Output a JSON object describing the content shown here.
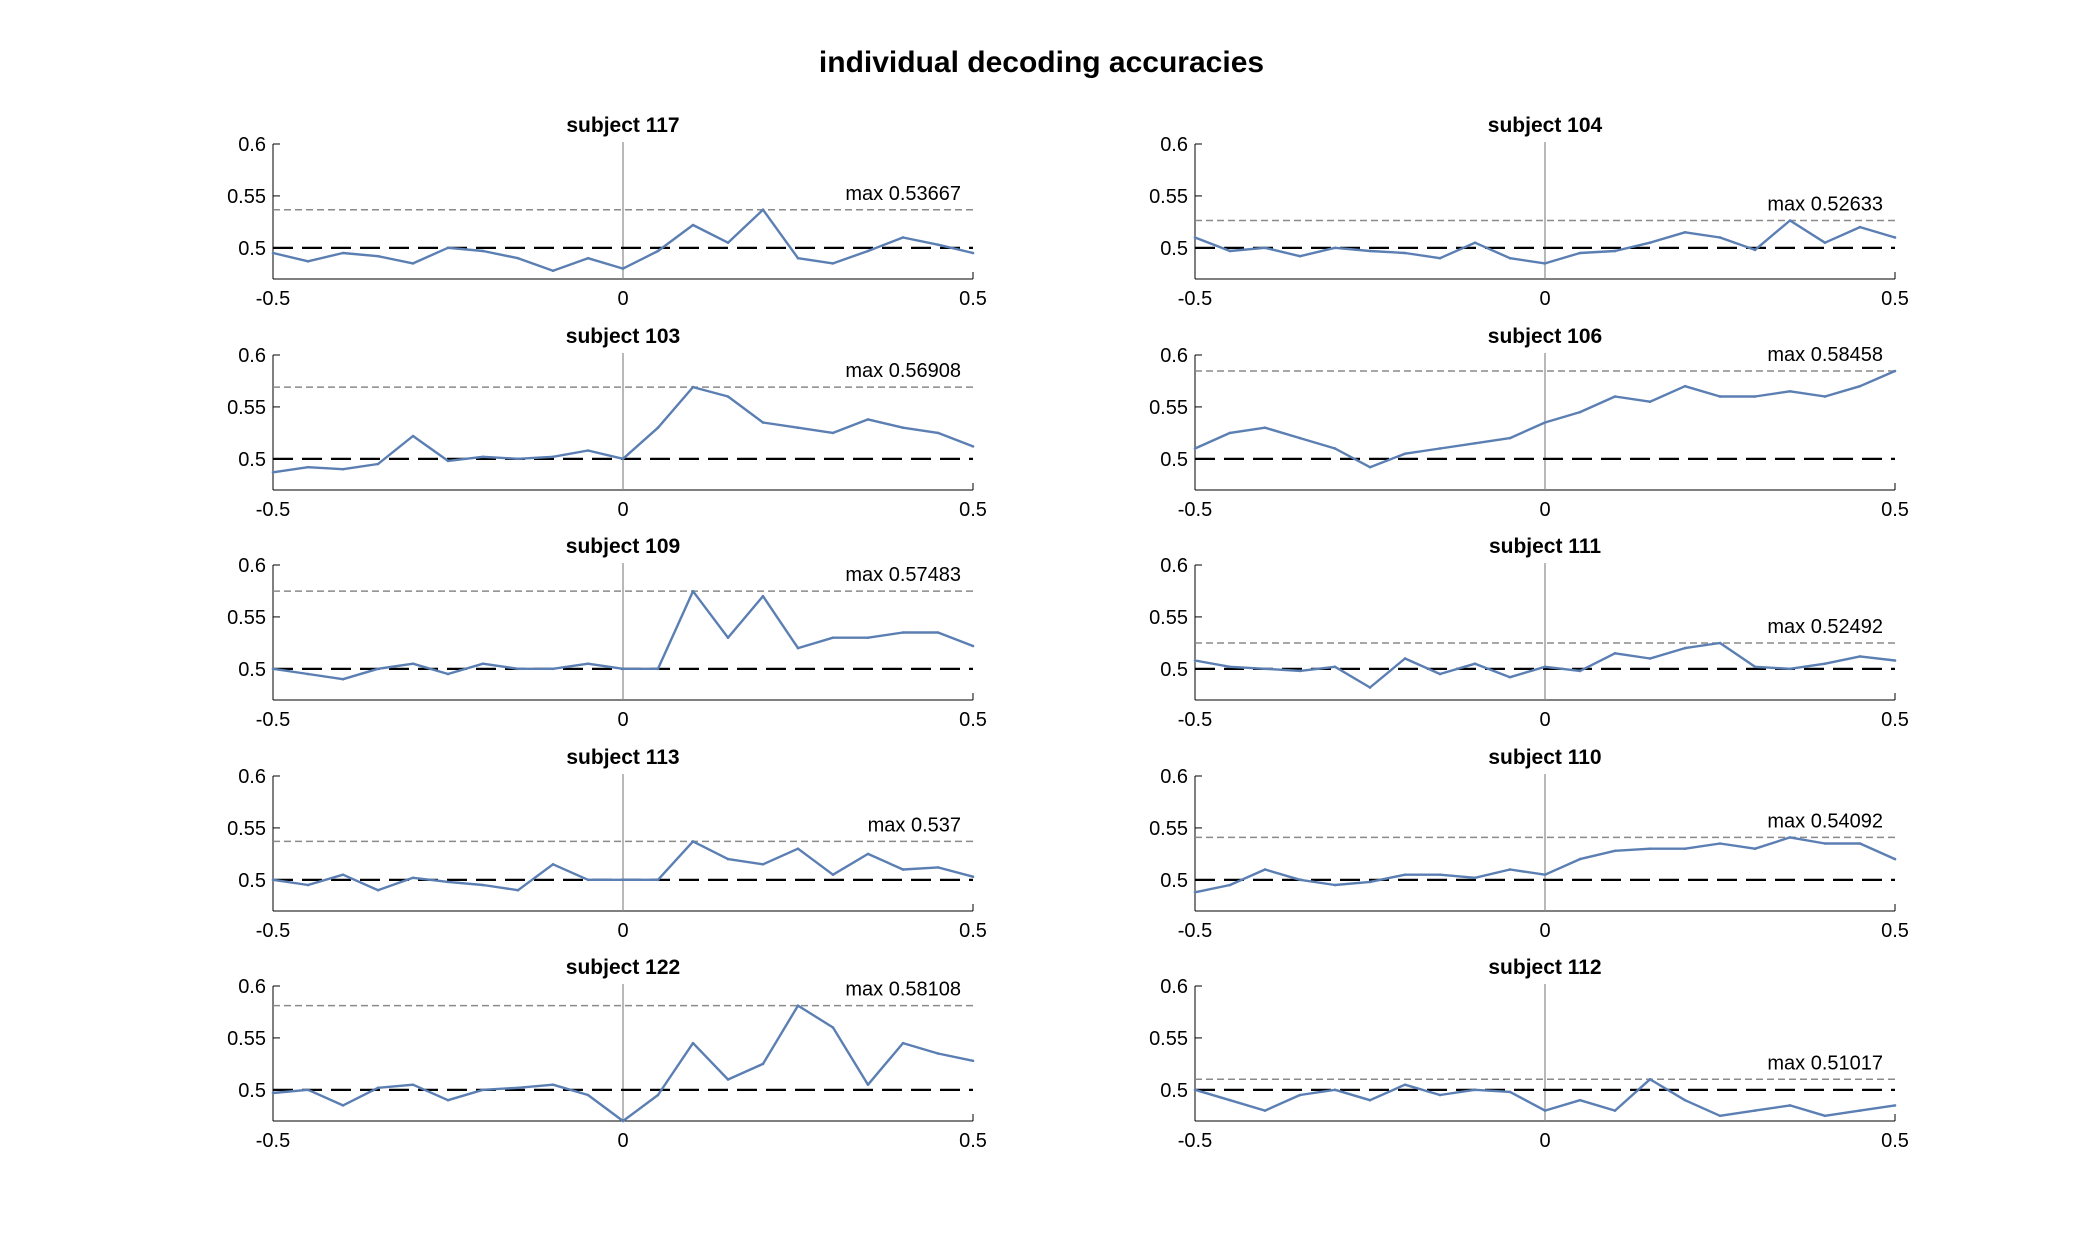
{
  "figure": {
    "title": "individual decoding accuracies"
  },
  "style": {
    "line_color": "#5b7fb3",
    "chance_color": "#000000",
    "max_line_color": "#8a8a8a",
    "axis_color": "#000000"
  },
  "chart_data": [
    {
      "type": "line",
      "title": "subject 117",
      "annotation": "max 0.53667",
      "max_value": 0.53667,
      "chance": 0.5,
      "xlim": [
        -0.5,
        0.5
      ],
      "ylim": [
        0.47,
        0.6
      ],
      "xticks": [
        -0.5,
        0,
        0.5
      ],
      "xtick_labels": [
        "-0.5",
        "0",
        "0.5"
      ],
      "yticks": [
        0.5,
        0.55,
        0.6
      ],
      "ytick_labels": [
        "0.5",
        "0.55",
        "0.6"
      ],
      "x": [
        -0.5,
        -0.45,
        -0.4,
        -0.35,
        -0.3,
        -0.25,
        -0.2,
        -0.15,
        -0.1,
        -0.05,
        0,
        0.05,
        0.1,
        0.15,
        0.2,
        0.25,
        0.3,
        0.35,
        0.4,
        0.45,
        0.5
      ],
      "values": [
        0.495,
        0.487,
        0.495,
        0.492,
        0.485,
        0.5,
        0.497,
        0.49,
        0.478,
        0.49,
        0.48,
        0.497,
        0.522,
        0.505,
        0.5367,
        0.49,
        0.485,
        0.497,
        0.51,
        0.503,
        0.495
      ]
    },
    {
      "type": "line",
      "title": "subject 104",
      "annotation": "max 0.52633",
      "max_value": 0.52633,
      "chance": 0.5,
      "xlim": [
        -0.5,
        0.5
      ],
      "ylim": [
        0.47,
        0.6
      ],
      "xticks": [
        -0.5,
        0,
        0.5
      ],
      "xtick_labels": [
        "-0.5",
        "0",
        "0.5"
      ],
      "yticks": [
        0.5,
        0.55,
        0.6
      ],
      "ytick_labels": [
        "0.5",
        "0.55",
        "0.6"
      ],
      "x": [
        -0.5,
        -0.45,
        -0.4,
        -0.35,
        -0.3,
        -0.25,
        -0.2,
        -0.15,
        -0.1,
        -0.05,
        0,
        0.05,
        0.1,
        0.15,
        0.2,
        0.25,
        0.3,
        0.35,
        0.4,
        0.45,
        0.5
      ],
      "values": [
        0.51,
        0.497,
        0.5,
        0.492,
        0.5,
        0.497,
        0.495,
        0.49,
        0.505,
        0.49,
        0.485,
        0.495,
        0.497,
        0.505,
        0.515,
        0.51,
        0.498,
        0.5263,
        0.505,
        0.52,
        0.51
      ]
    },
    {
      "type": "line",
      "title": "subject 103",
      "annotation": "max 0.56908",
      "max_value": 0.56908,
      "chance": 0.5,
      "xlim": [
        -0.5,
        0.5
      ],
      "ylim": [
        0.47,
        0.6
      ],
      "xticks": [
        -0.5,
        0,
        0.5
      ],
      "xtick_labels": [
        "-0.5",
        "0",
        "0.5"
      ],
      "yticks": [
        0.5,
        0.55,
        0.6
      ],
      "ytick_labels": [
        "0.5",
        "0.55",
        "0.6"
      ],
      "x": [
        -0.5,
        -0.45,
        -0.4,
        -0.35,
        -0.3,
        -0.25,
        -0.2,
        -0.15,
        -0.1,
        -0.05,
        0,
        0.05,
        0.1,
        0.15,
        0.2,
        0.25,
        0.3,
        0.35,
        0.4,
        0.45,
        0.5
      ],
      "values": [
        0.487,
        0.492,
        0.49,
        0.495,
        0.522,
        0.498,
        0.502,
        0.5,
        0.502,
        0.508,
        0.5,
        0.53,
        0.5691,
        0.56,
        0.535,
        0.53,
        0.525,
        0.538,
        0.53,
        0.525,
        0.512
      ]
    },
    {
      "type": "line",
      "title": "subject 106",
      "annotation": "max 0.58458",
      "max_value": 0.58458,
      "chance": 0.5,
      "xlim": [
        -0.5,
        0.5
      ],
      "ylim": [
        0.47,
        0.6
      ],
      "xticks": [
        -0.5,
        0,
        0.5
      ],
      "xtick_labels": [
        "-0.5",
        "0",
        "0.5"
      ],
      "yticks": [
        0.5,
        0.55,
        0.6
      ],
      "ytick_labels": [
        "0.5",
        "0.55",
        "0.6"
      ],
      "x": [
        -0.5,
        -0.45,
        -0.4,
        -0.35,
        -0.3,
        -0.25,
        -0.2,
        -0.15,
        -0.1,
        -0.05,
        0,
        0.05,
        0.1,
        0.15,
        0.2,
        0.25,
        0.3,
        0.35,
        0.4,
        0.45,
        0.5
      ],
      "values": [
        0.51,
        0.525,
        0.53,
        0.52,
        0.51,
        0.492,
        0.505,
        0.51,
        0.515,
        0.52,
        0.535,
        0.545,
        0.56,
        0.555,
        0.57,
        0.56,
        0.56,
        0.565,
        0.56,
        0.57,
        0.5846
      ]
    },
    {
      "type": "line",
      "title": "subject 109",
      "annotation": "max 0.57483",
      "max_value": 0.57483,
      "chance": 0.5,
      "xlim": [
        -0.5,
        0.5
      ],
      "ylim": [
        0.47,
        0.6
      ],
      "xticks": [
        -0.5,
        0,
        0.5
      ],
      "xtick_labels": [
        "-0.5",
        "0",
        "0.5"
      ],
      "yticks": [
        0.5,
        0.55,
        0.6
      ],
      "ytick_labels": [
        "0.5",
        "0.55",
        "0.6"
      ],
      "x": [
        -0.5,
        -0.45,
        -0.4,
        -0.35,
        -0.3,
        -0.25,
        -0.2,
        -0.15,
        -0.1,
        -0.05,
        0,
        0.05,
        0.1,
        0.15,
        0.2,
        0.25,
        0.3,
        0.35,
        0.4,
        0.45,
        0.5
      ],
      "values": [
        0.5,
        0.495,
        0.49,
        0.5,
        0.505,
        0.495,
        0.505,
        0.5,
        0.5,
        0.505,
        0.5,
        0.5,
        0.5748,
        0.53,
        0.57,
        0.52,
        0.53,
        0.53,
        0.535,
        0.535,
        0.522
      ]
    },
    {
      "type": "line",
      "title": "subject 111",
      "annotation": "max 0.52492",
      "max_value": 0.52492,
      "chance": 0.5,
      "xlim": [
        -0.5,
        0.5
      ],
      "ylim": [
        0.47,
        0.6
      ],
      "xticks": [
        -0.5,
        0,
        0.5
      ],
      "xtick_labels": [
        "-0.5",
        "0",
        "0.5"
      ],
      "yticks": [
        0.5,
        0.55,
        0.6
      ],
      "ytick_labels": [
        "0.5",
        "0.55",
        "0.6"
      ],
      "x": [
        -0.5,
        -0.45,
        -0.4,
        -0.35,
        -0.3,
        -0.25,
        -0.2,
        -0.15,
        -0.1,
        -0.05,
        0,
        0.05,
        0.1,
        0.15,
        0.2,
        0.25,
        0.3,
        0.35,
        0.4,
        0.45,
        0.5
      ],
      "values": [
        0.508,
        0.502,
        0.5,
        0.498,
        0.502,
        0.482,
        0.51,
        0.495,
        0.505,
        0.492,
        0.502,
        0.498,
        0.515,
        0.51,
        0.52,
        0.5249,
        0.502,
        0.5,
        0.505,
        0.512,
        0.508
      ]
    },
    {
      "type": "line",
      "title": "subject 113",
      "annotation": "max 0.537",
      "max_value": 0.537,
      "chance": 0.5,
      "xlim": [
        -0.5,
        0.5
      ],
      "ylim": [
        0.47,
        0.6
      ],
      "xticks": [
        -0.5,
        0,
        0.5
      ],
      "xtick_labels": [
        "-0.5",
        "0",
        "0.5"
      ],
      "yticks": [
        0.5,
        0.55,
        0.6
      ],
      "ytick_labels": [
        "0.5",
        "0.55",
        "0.6"
      ],
      "x": [
        -0.5,
        -0.45,
        -0.4,
        -0.35,
        -0.3,
        -0.25,
        -0.2,
        -0.15,
        -0.1,
        -0.05,
        0,
        0.05,
        0.1,
        0.15,
        0.2,
        0.25,
        0.3,
        0.35,
        0.4,
        0.45,
        0.5
      ],
      "values": [
        0.5,
        0.495,
        0.505,
        0.49,
        0.502,
        0.498,
        0.495,
        0.49,
        0.515,
        0.5,
        0.5,
        0.5,
        0.537,
        0.52,
        0.515,
        0.53,
        0.505,
        0.525,
        0.51,
        0.512,
        0.503
      ]
    },
    {
      "type": "line",
      "title": "subject 110",
      "annotation": "max 0.54092",
      "max_value": 0.54092,
      "chance": 0.5,
      "xlim": [
        -0.5,
        0.5
      ],
      "ylim": [
        0.47,
        0.6
      ],
      "xticks": [
        -0.5,
        0,
        0.5
      ],
      "xtick_labels": [
        "-0.5",
        "0",
        "0.5"
      ],
      "yticks": [
        0.5,
        0.55,
        0.6
      ],
      "ytick_labels": [
        "0.5",
        "0.55",
        "0.6"
      ],
      "x": [
        -0.5,
        -0.45,
        -0.4,
        -0.35,
        -0.3,
        -0.25,
        -0.2,
        -0.15,
        -0.1,
        -0.05,
        0,
        0.05,
        0.1,
        0.15,
        0.2,
        0.25,
        0.3,
        0.35,
        0.4,
        0.45,
        0.5
      ],
      "values": [
        0.488,
        0.495,
        0.51,
        0.5,
        0.495,
        0.498,
        0.505,
        0.505,
        0.502,
        0.51,
        0.505,
        0.52,
        0.528,
        0.53,
        0.53,
        0.535,
        0.53,
        0.5409,
        0.535,
        0.535,
        0.52
      ]
    },
    {
      "type": "line",
      "title": "subject 122",
      "annotation": "max 0.58108",
      "max_value": 0.58108,
      "chance": 0.5,
      "xlim": [
        -0.5,
        0.5
      ],
      "ylim": [
        0.47,
        0.6
      ],
      "xticks": [
        -0.5,
        0,
        0.5
      ],
      "xtick_labels": [
        "-0.5",
        "0",
        "0.5"
      ],
      "yticks": [
        0.5,
        0.55,
        0.6
      ],
      "ytick_labels": [
        "0.5",
        "0.55",
        "0.6"
      ],
      "x": [
        -0.5,
        -0.45,
        -0.4,
        -0.35,
        -0.3,
        -0.25,
        -0.2,
        -0.15,
        -0.1,
        -0.05,
        0,
        0.05,
        0.1,
        0.15,
        0.2,
        0.25,
        0.3,
        0.35,
        0.4,
        0.45,
        0.5
      ],
      "values": [
        0.497,
        0.5,
        0.485,
        0.502,
        0.505,
        0.49,
        0.5,
        0.502,
        0.505,
        0.495,
        0.47,
        0.495,
        0.545,
        0.51,
        0.525,
        0.5811,
        0.56,
        0.505,
        0.545,
        0.535,
        0.528
      ]
    },
    {
      "type": "line",
      "title": "subject 112",
      "annotation": "max 0.51017",
      "max_value": 0.51017,
      "chance": 0.5,
      "xlim": [
        -0.5,
        0.5
      ],
      "ylim": [
        0.47,
        0.6
      ],
      "xticks": [
        -0.5,
        0,
        0.5
      ],
      "xtick_labels": [
        "-0.5",
        "0",
        "0.5"
      ],
      "yticks": [
        0.5,
        0.55,
        0.6
      ],
      "ytick_labels": [
        "0.5",
        "0.55",
        "0.6"
      ],
      "x": [
        -0.5,
        -0.45,
        -0.4,
        -0.35,
        -0.3,
        -0.25,
        -0.2,
        -0.15,
        -0.1,
        -0.05,
        0,
        0.05,
        0.1,
        0.15,
        0.2,
        0.25,
        0.3,
        0.35,
        0.4,
        0.45,
        0.5
      ],
      "values": [
        0.5,
        0.49,
        0.48,
        0.495,
        0.5,
        0.49,
        0.505,
        0.495,
        0.5,
        0.498,
        0.48,
        0.49,
        0.48,
        0.5102,
        0.49,
        0.475,
        0.48,
        0.485,
        0.475,
        0.48,
        0.485
      ]
    }
  ]
}
